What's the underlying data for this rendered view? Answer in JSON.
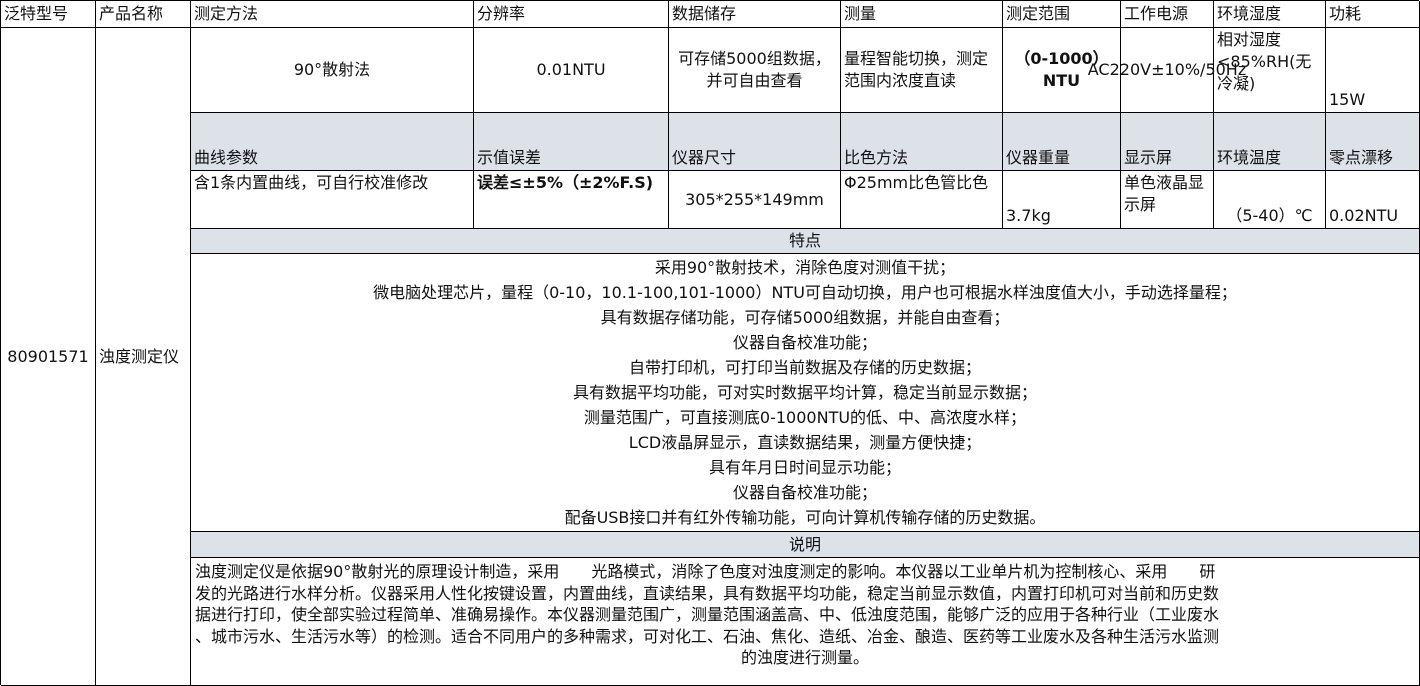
{
  "headers": [
    "泛特型号",
    "产品名称",
    "测定方法",
    "分辨率",
    "数据储存",
    "测量",
    "测定范围",
    "工作电源",
    "环境湿度",
    "功耗"
  ],
  "model": "80901571",
  "product_name": "浊度测定仪",
  "row1": [
    "90°散射法",
    "0.01NTU",
    "可存储5000组数据，并可自由查看",
    "量程智能切换，测定范围内浓度直读",
    "（0-1000）NTU",
    "AC220V±10%/50Hz",
    "相对湿度<85%RH(无冷凝)",
    "15W"
  ],
  "headers2": [
    "曲线参数",
    "示值误差",
    "仪器尺寸",
    "比色方法",
    "仪器重量",
    "显示屏",
    "环境温度",
    "零点漂移"
  ],
  "row2": [
    "含1条内置曲线，可自行校准修改",
    "误差≤±5%（±2%F.S)",
    "305*255*149mm",
    "Φ25mm比色管比色",
    "3.7kg",
    "单色液晶显示屏",
    "（5-40）℃",
    "0.02NTU"
  ],
  "features_title": "特点",
  "features": [
    "采用90°散射技术，消除色度对测值干扰；",
    "微电脑处理芯片，量程（0-10，10.1-100,101-1000）NTU可自动切换，用户也可根据水样浊度值大小，手动选择量程；",
    "具有数据存储功能，可存储5000组数据，并能自由查看；",
    "仪器自备校准功能；",
    "自带打印机，可打印当前数据及存储的历史数据；",
    "具有数据平均功能，可对实时数据平均计算，稳定当前显示数据；",
    "测量范围广，可直接测底0-1000NTU的低、中、高浓度水样；",
    "LCD液晶屏显示，直读数据结果，测量方便快捷；",
    "具有年月日时间显示功能；",
    "仪器自备校准功能；",
    "配备USB接口并有红外传输功能，可向计算机传输存储的历史数据。"
  ],
  "description_title": "说明",
  "description": [
    "浊度测定仪是依据90°散射光的原理设计制造，采用　　光路模式，消除了色度对浊度测定的影响。本仪器以工业单片机为控制核心、采用　　研",
    "发的光路进行水样分析。仪器采用人性化按键设置，内置曲线，直读结果，具有数据平均功能，稳定当前显示数值，内置打印机可对当前和历史数",
    "据进行打印，使全部实验过程简单、准确易操作。本仪器测量范围广，测量范围涵盖高、中、低浊度范围，能够广泛的应用于各种行业（工业废水",
    "、城市污水、生活污水等）的检测。适合不同用户的多种需求，可对化工、石油、焦化、造纸、冶金、酿造、医药等工业废水及各种生活污水监测",
    "的浊度进行测量。"
  ],
  "colors": {
    "section_fill": "#dde1e8",
    "border": "#000000"
  }
}
